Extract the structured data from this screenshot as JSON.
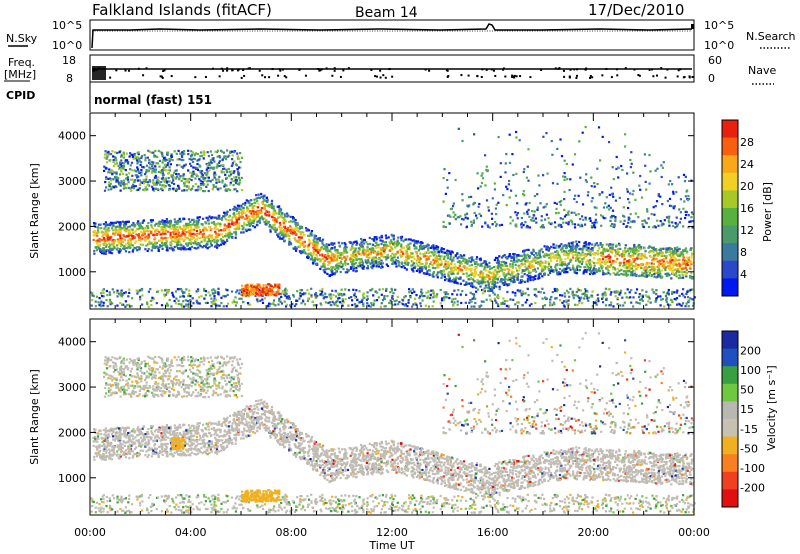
{
  "header": {
    "station": "Falkland Islands (fitACF)",
    "beam": "Beam 14",
    "date": "17/Dec/2010"
  },
  "colors": {
    "power_scale": [
      "#0018f0",
      "#2a48c8",
      "#3a7aa0",
      "#4a9a6a",
      "#58b040",
      "#a8c828",
      "#f0d020",
      "#f8a818",
      "#f86010",
      "#e82010"
    ],
    "velocity_scale": [
      "#1a2aa0",
      "#2050c0",
      "#38a040",
      "#70c840",
      "#b8b8b0",
      "#c8c0b0",
      "#f0b020",
      "#f88020",
      "#f04020",
      "#e01010"
    ],
    "scatter_gray": "#c0bcb4"
  },
  "chart_data": [
    {
      "type": "line",
      "name": "top-strip",
      "left_labels": [
        "N.Sky"
      ],
      "right_labels": [
        "N.Search"
      ],
      "left_ticks": [
        "10^5",
        "10^0"
      ],
      "right_ticks": [
        "10^5",
        "10^0"
      ]
    },
    {
      "type": "scatter",
      "name": "freq-strip",
      "left_labels": [
        "Freq.",
        "[MHz]"
      ],
      "right_labels": [
        "Nave"
      ],
      "left_ticks": [
        "18",
        "8"
      ],
      "right_ticks": [
        "60",
        "0"
      ]
    },
    {
      "type": "heatmap",
      "name": "power-panel",
      "cpid_label": "CPID",
      "cpid_text": "normal (fast) 151",
      "ylabel": "Slant Range [km]",
      "yticks": [
        "4000",
        "3000",
        "2000",
        "1000"
      ],
      "ylim": [
        180,
        4500
      ],
      "xlim": [
        0,
        24
      ],
      "colorbar": {
        "label": "Power [dB]",
        "ticks": [
          "28",
          "24",
          "20",
          "16",
          "12",
          "8",
          "4"
        ],
        "range": [
          0,
          30
        ]
      }
    },
    {
      "type": "heatmap",
      "name": "velocity-panel",
      "ylabel": "Slant Range [km]",
      "yticks": [
        "4000",
        "3000",
        "2000",
        "1000"
      ],
      "ylim": [
        180,
        4500
      ],
      "xlim": [
        0,
        24
      ],
      "colorbar": {
        "label": "Velocity [m s⁻¹]",
        "ticks": [
          "200",
          "100",
          "50",
          "15",
          "-15",
          "-50",
          "-100",
          "-200"
        ],
        "range": [
          -250,
          250
        ]
      }
    }
  ],
  "xaxis": {
    "ticks": [
      "00:00",
      "04:00",
      "08:00",
      "12:00",
      "16:00",
      "20:00",
      "00:00"
    ],
    "tick_hours": [
      0,
      4,
      8,
      12,
      16,
      20,
      24
    ],
    "label": "Time UT"
  }
}
